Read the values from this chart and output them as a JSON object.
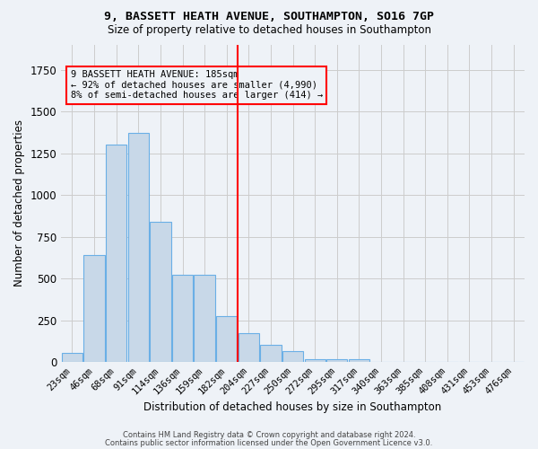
{
  "title1": "9, BASSETT HEATH AVENUE, SOUTHAMPTON, SO16 7GP",
  "title2": "Size of property relative to detached houses in Southampton",
  "xlabel": "Distribution of detached houses by size in Southampton",
  "ylabel": "Number of detached properties",
  "bin_labels": [
    "23sqm",
    "46sqm",
    "68sqm",
    "91sqm",
    "114sqm",
    "136sqm",
    "159sqm",
    "182sqm",
    "204sqm",
    "227sqm",
    "250sqm",
    "272sqm",
    "295sqm",
    "317sqm",
    "340sqm",
    "363sqm",
    "385sqm",
    "408sqm",
    "431sqm",
    "453sqm",
    "476sqm"
  ],
  "bar_values": [
    55,
    640,
    1300,
    1370,
    840,
    520,
    520,
    275,
    170,
    100,
    65,
    15,
    15,
    15,
    0,
    0,
    0,
    0,
    0,
    0,
    0
  ],
  "bar_color": "#c8d8e8",
  "bar_edge_color": "#6aafe6",
  "vline_color": "red",
  "vline_pos": 7.5,
  "annotation_text": "9 BASSETT HEATH AVENUE: 185sqm\n← 92% of detached houses are smaller (4,990)\n8% of semi-detached houses are larger (414) →",
  "annotation_box_color": "red",
  "ylim": [
    0,
    1900
  ],
  "footer1": "Contains HM Land Registry data © Crown copyright and database right 2024.",
  "footer2": "Contains public sector information licensed under the Open Government Licence v3.0.",
  "bg_color": "#eef2f7",
  "grid_color": "#cccccc"
}
